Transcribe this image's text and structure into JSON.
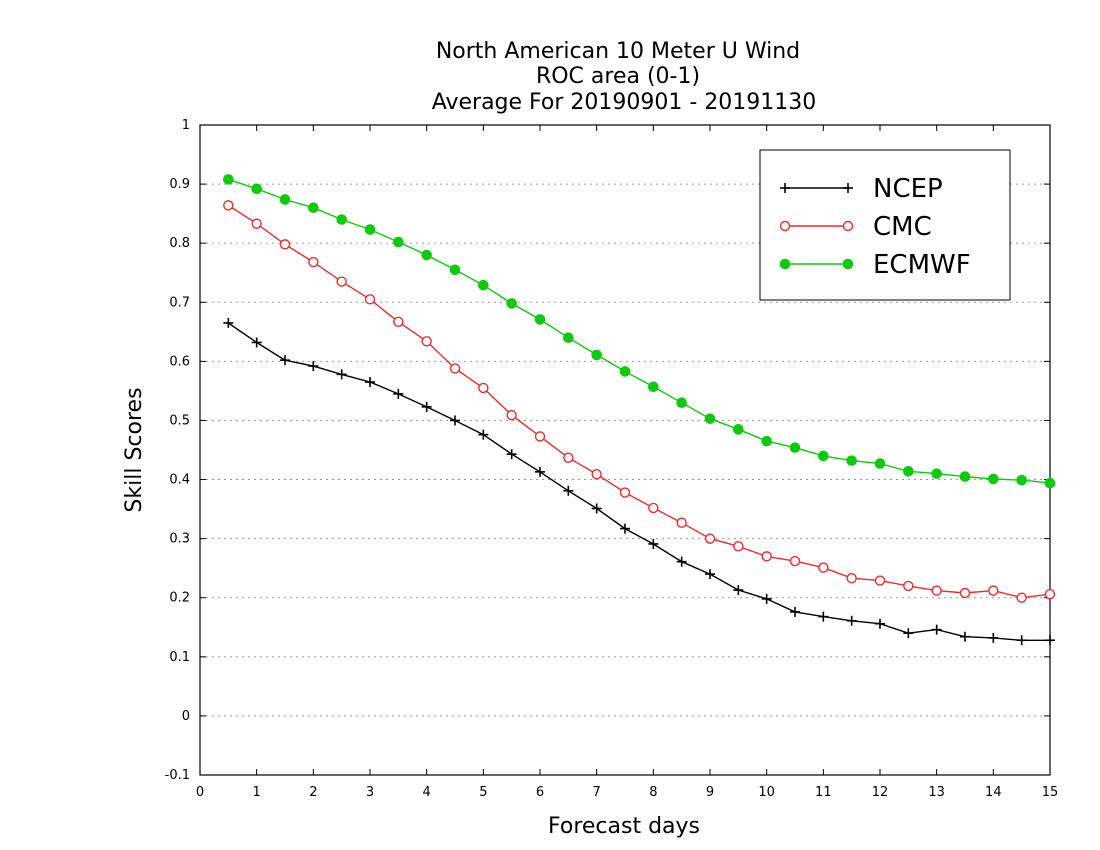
{
  "chart_data": {
    "type": "line",
    "title_lines": [
      "North American 10 Meter U Wind",
      "ROC area (0-1)",
      "Average For 20190901 - 20191130"
    ],
    "xlabel": "Forecast days",
    "ylabel": "Skill Scores",
    "xlim": [
      0,
      15
    ],
    "ylim": [
      -0.1,
      1
    ],
    "x_ticks": [
      "0",
      "1",
      "2",
      "3",
      "4",
      "5",
      "6",
      "7",
      "8",
      "9",
      "10",
      "11",
      "12",
      "13",
      "14",
      "15"
    ],
    "y_ticks": [
      "-0.1",
      "0",
      "0.1",
      "0.2",
      "0.3",
      "0.4",
      "0.5",
      "0.6",
      "0.7",
      "0.8",
      "0.9",
      "1"
    ],
    "grid": "horizontal dotted",
    "legend_position": "top-right",
    "x": [
      0.5,
      1,
      1.5,
      2,
      2.5,
      3,
      3.5,
      4,
      4.5,
      5,
      5.5,
      6,
      6.5,
      7,
      7.5,
      8,
      8.5,
      9,
      9.5,
      10,
      10.5,
      11,
      11.5,
      12,
      12.5,
      13,
      13.5,
      14,
      14.5,
      15
    ],
    "series": [
      {
        "name": "NCEP",
        "color": "#000000",
        "marker": "plus",
        "values": [
          0.665,
          0.632,
          0.602,
          0.592,
          0.578,
          0.565,
          0.545,
          0.523,
          0.5,
          0.476,
          0.443,
          0.413,
          0.381,
          0.351,
          0.317,
          0.291,
          0.261,
          0.24,
          0.213,
          0.198,
          0.176,
          0.168,
          0.161,
          0.156,
          0.14,
          0.146,
          0.134,
          0.132,
          0.128,
          0.128
        ]
      },
      {
        "name": "CMC",
        "color": "#e03030",
        "marker": "open-circle",
        "values": [
          0.864,
          0.833,
          0.798,
          0.768,
          0.735,
          0.705,
          0.667,
          0.634,
          0.588,
          0.555,
          0.509,
          0.473,
          0.437,
          0.409,
          0.378,
          0.352,
          0.327,
          0.3,
          0.287,
          0.27,
          0.262,
          0.251,
          0.233,
          0.229,
          0.22,
          0.212,
          0.208,
          0.212,
          0.2,
          0.206
        ]
      },
      {
        "name": "ECMWF",
        "color": "#11c811",
        "marker": "filled-circle",
        "values": [
          0.908,
          0.892,
          0.874,
          0.86,
          0.84,
          0.823,
          0.802,
          0.78,
          0.755,
          0.729,
          0.698,
          0.671,
          0.64,
          0.611,
          0.583,
          0.557,
          0.53,
          0.503,
          0.485,
          0.465,
          0.454,
          0.44,
          0.432,
          0.427,
          0.414,
          0.41,
          0.405,
          0.401,
          0.399,
          0.394
        ]
      }
    ]
  }
}
